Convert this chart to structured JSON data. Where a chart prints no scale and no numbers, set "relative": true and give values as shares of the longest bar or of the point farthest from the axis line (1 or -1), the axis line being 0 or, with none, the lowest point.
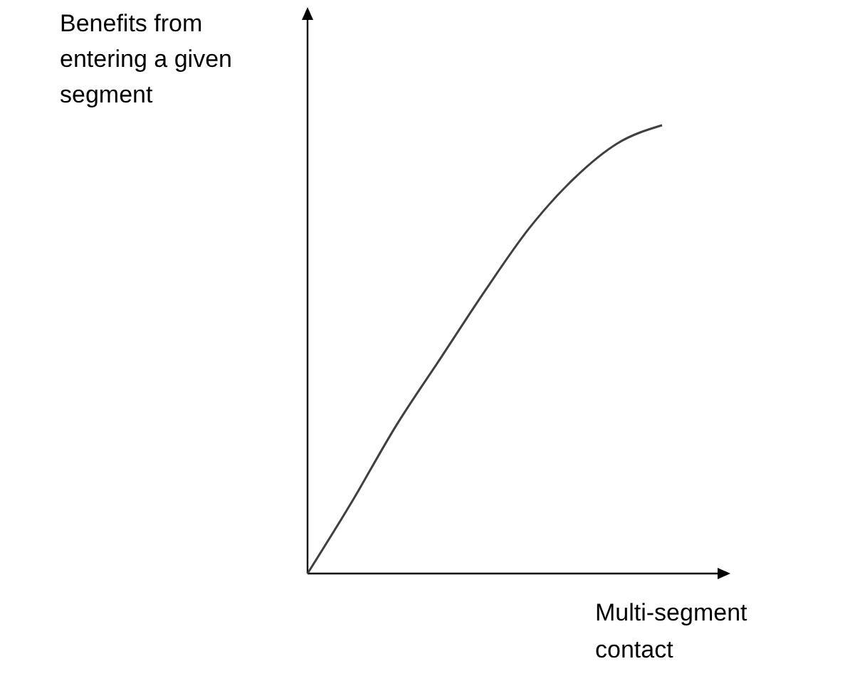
{
  "chart_data": {
    "type": "line",
    "xlabel": "Multi-segment contact",
    "ylabel": "Benefits from entering a given segment",
    "relative": true,
    "color": "#404040",
    "categories": [
      null,
      null,
      null,
      null,
      null,
      null,
      null,
      null,
      null
    ],
    "values": [
      0,
      0.16,
      0.33,
      0.48,
      0.63,
      0.77,
      0.88,
      0.96,
      1
    ]
  }
}
